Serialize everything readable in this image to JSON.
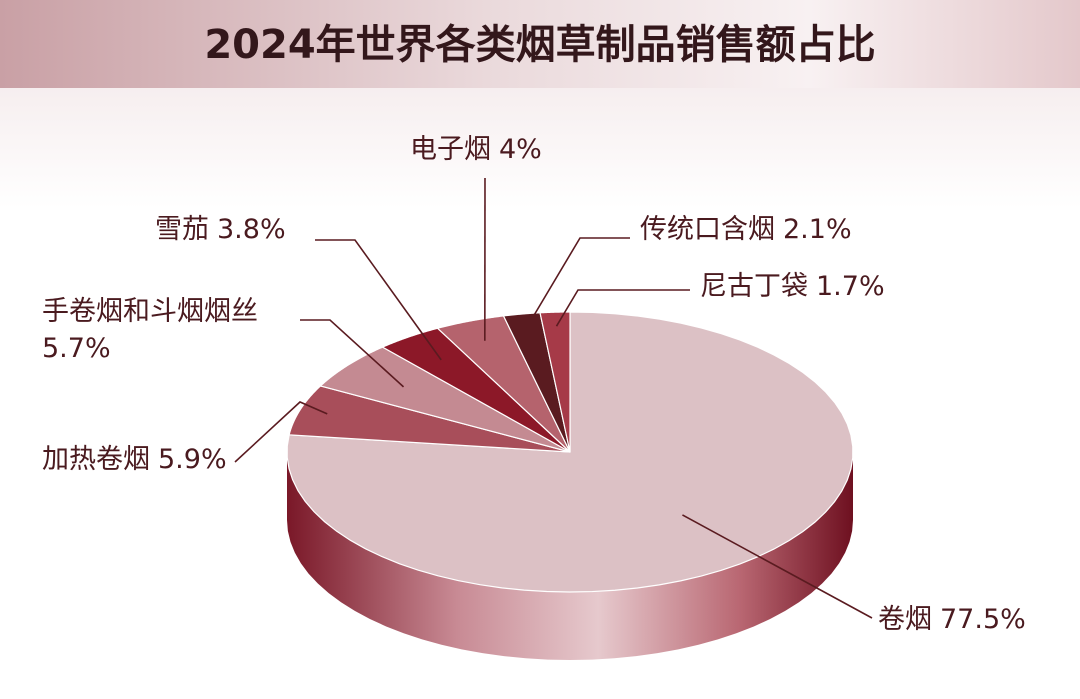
{
  "chart_data": {
    "type": "pie3d",
    "title": "2024年世界各类烟草制品销售额占比",
    "categories": [
      "卷烟",
      "加热卷烟",
      "手卷烟和斗烟烟丝",
      "雪茄",
      "电子烟",
      "传统口含烟",
      "尼古丁袋"
    ],
    "values": [
      77.5,
      5.9,
      5.7,
      3.8,
      4,
      2.1,
      1.7
    ],
    "value_labels": [
      "77.5%",
      "5.9%",
      "5.7%",
      "3.8%",
      "4%",
      "2.1%",
      "1.7%"
    ],
    "colors": [
      "#dcc1c5",
      "#a84e5a",
      "#c48a92",
      "#8c1828",
      "#b5636d",
      "#5a1b20",
      "#a63a48"
    ]
  }
}
